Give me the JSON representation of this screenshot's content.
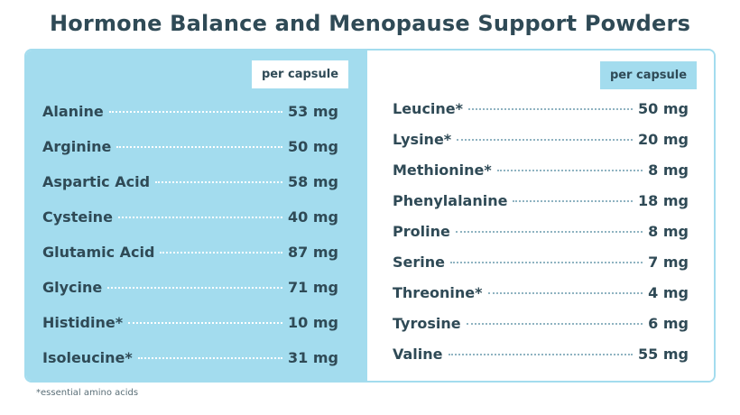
{
  "title": "Hormone Balance and Menopause Support Powders",
  "left_column": {
    "header": "per capsule",
    "rows": [
      {
        "name": "Alanine",
        "amount": "53 mg"
      },
      {
        "name": "Arginine",
        "amount": "50 mg"
      },
      {
        "name": "Aspartic Acid",
        "amount": "58 mg"
      },
      {
        "name": "Cysteine",
        "amount": "40 mg"
      },
      {
        "name": "Glutamic Acid",
        "amount": "87 mg"
      },
      {
        "name": "Glycine",
        "amount": "71 mg"
      },
      {
        "name": "Histidine*",
        "amount": "10 mg"
      },
      {
        "name": "Isoleucine*",
        "amount": "31 mg"
      }
    ]
  },
  "right_column": {
    "header": "per capsule",
    "rows": [
      {
        "name": "Leucine*",
        "amount": "50 mg"
      },
      {
        "name": "Lysine*",
        "amount": "20 mg"
      },
      {
        "name": "Methionine*",
        "amount": "8 mg"
      },
      {
        "name": "Phenylalanine",
        "amount": "18 mg"
      },
      {
        "name": "Proline",
        "amount": "8 mg"
      },
      {
        "name": "Serine",
        "amount": "7 mg"
      },
      {
        "name": "Threonine*",
        "amount": "4 mg"
      },
      {
        "name": "Tyrosine",
        "amount": "6 mg"
      },
      {
        "name": "Valine",
        "amount": "55 mg"
      }
    ]
  },
  "footnote": "*essential amino acids",
  "colors": {
    "accent": "#a3dcee",
    "text": "#2f4a56"
  }
}
